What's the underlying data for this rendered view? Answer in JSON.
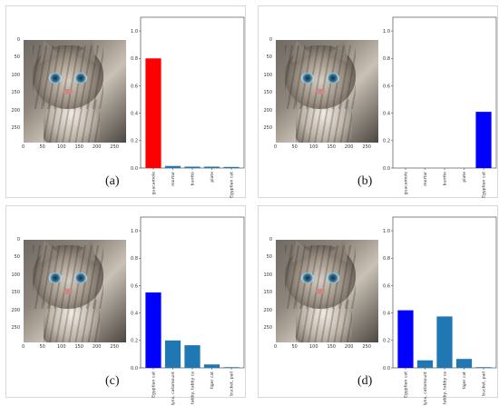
{
  "colors": {
    "highlight_red": "#ff0000",
    "highlight_blue": "#0000ff",
    "default_bar": "#1f77b4"
  },
  "image_axis": {
    "yticks": [
      "0",
      "50",
      "100",
      "150",
      "200",
      "250"
    ],
    "xticks": [
      "0",
      "50",
      "100",
      "150",
      "200",
      "250"
    ],
    "range": [
      0,
      290
    ]
  },
  "chart_data": [
    {
      "type": "bar",
      "panel": "(a)",
      "ylim": [
        0,
        1.1
      ],
      "yticks": [
        "0.0",
        "0.2",
        "0.4",
        "0.6",
        "0.8",
        "1.0"
      ],
      "categories": [
        "guacamole",
        "mortar",
        "burrito",
        "plate",
        "Egyptian cat"
      ],
      "values": [
        0.8,
        0.015,
        0.01,
        0.01,
        0.008
      ],
      "highlight_index": 0,
      "highlight_color": "red"
    },
    {
      "type": "bar",
      "panel": "(b)",
      "ylim": [
        0,
        1.1
      ],
      "yticks": [
        "0.0",
        "0.2",
        "0.4",
        "0.6",
        "0.8",
        "1.0"
      ],
      "categories": [
        "guacamole",
        "mortar",
        "burrito",
        "plate",
        "Egyptian cat"
      ],
      "values": [
        0.0,
        0.0,
        0.0,
        0.0,
        0.41
      ],
      "highlight_index": 4,
      "highlight_color": "blue"
    },
    {
      "type": "bar",
      "panel": "(c)",
      "ylim": [
        0,
        1.1
      ],
      "yticks": [
        "0.0",
        "0.2",
        "0.4",
        "0.6",
        "0.8",
        "1.0"
      ],
      "categories": [
        "Egyptian cat",
        "lynx, catamount",
        "tabby, tabby ca",
        "tiger cat",
        "bucket, pail"
      ],
      "values": [
        0.55,
        0.2,
        0.165,
        0.025,
        0.005
      ],
      "highlight_index": 0,
      "highlight_color": "blue"
    },
    {
      "type": "bar",
      "panel": "(d)",
      "ylim": [
        0,
        1.1
      ],
      "yticks": [
        "0.0",
        "0.2",
        "0.4",
        "0.6",
        "0.8",
        "1.0"
      ],
      "categories": [
        "Egyptian cat",
        "lynx, catamount",
        "tabby, tabby ca",
        "tiger cat",
        "bucket, pail"
      ],
      "values": [
        0.42,
        0.055,
        0.375,
        0.065,
        0.005
      ],
      "highlight_index": 0,
      "highlight_color": "blue"
    }
  ]
}
